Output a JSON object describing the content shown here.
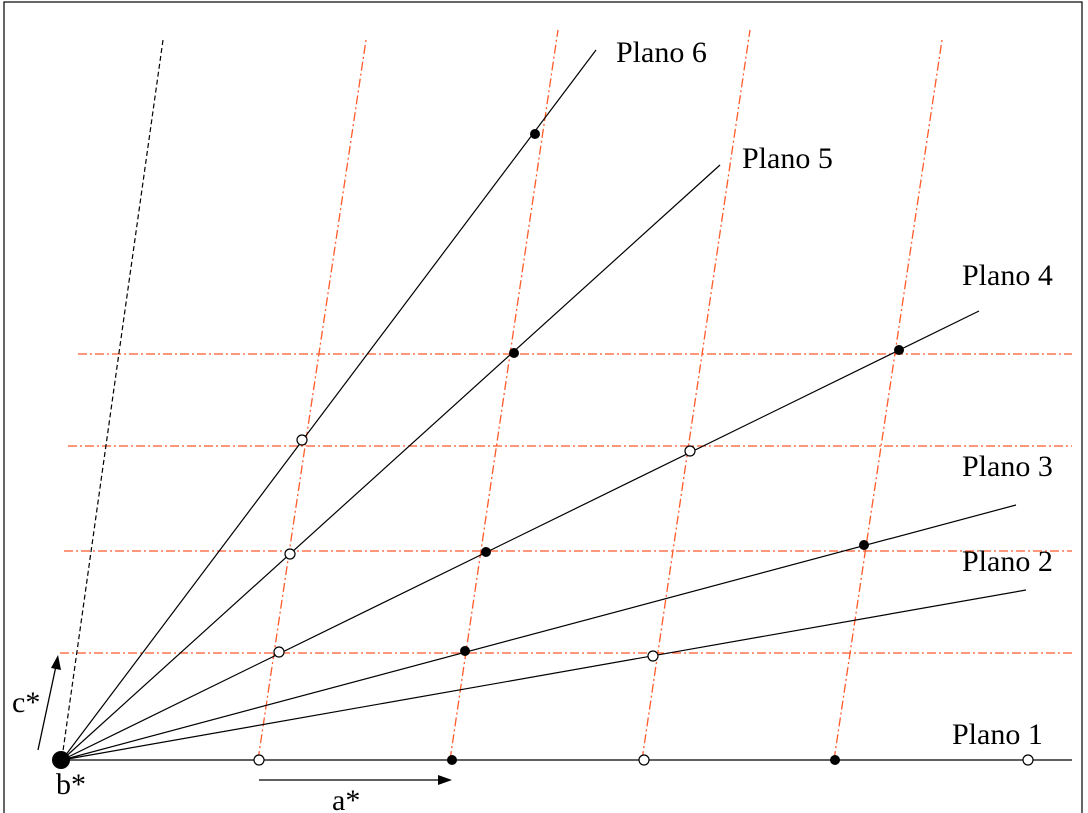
{
  "planes": [
    {
      "id": "1",
      "label": "Plano 1"
    },
    {
      "id": "2",
      "label": "Plano 2"
    },
    {
      "id": "3",
      "label": "Plano 3"
    },
    {
      "id": "4",
      "label": "Plano 4"
    },
    {
      "id": "5",
      "label": "Plano 5"
    },
    {
      "id": "6",
      "label": "Plano 6"
    }
  ],
  "axes": {
    "a_star": "a*",
    "b_star": "b*",
    "c_star": "c*"
  },
  "colors": {
    "reference_lines": "#ff5a2a",
    "plane_lines": "#000000",
    "background": "#ffffff"
  }
}
